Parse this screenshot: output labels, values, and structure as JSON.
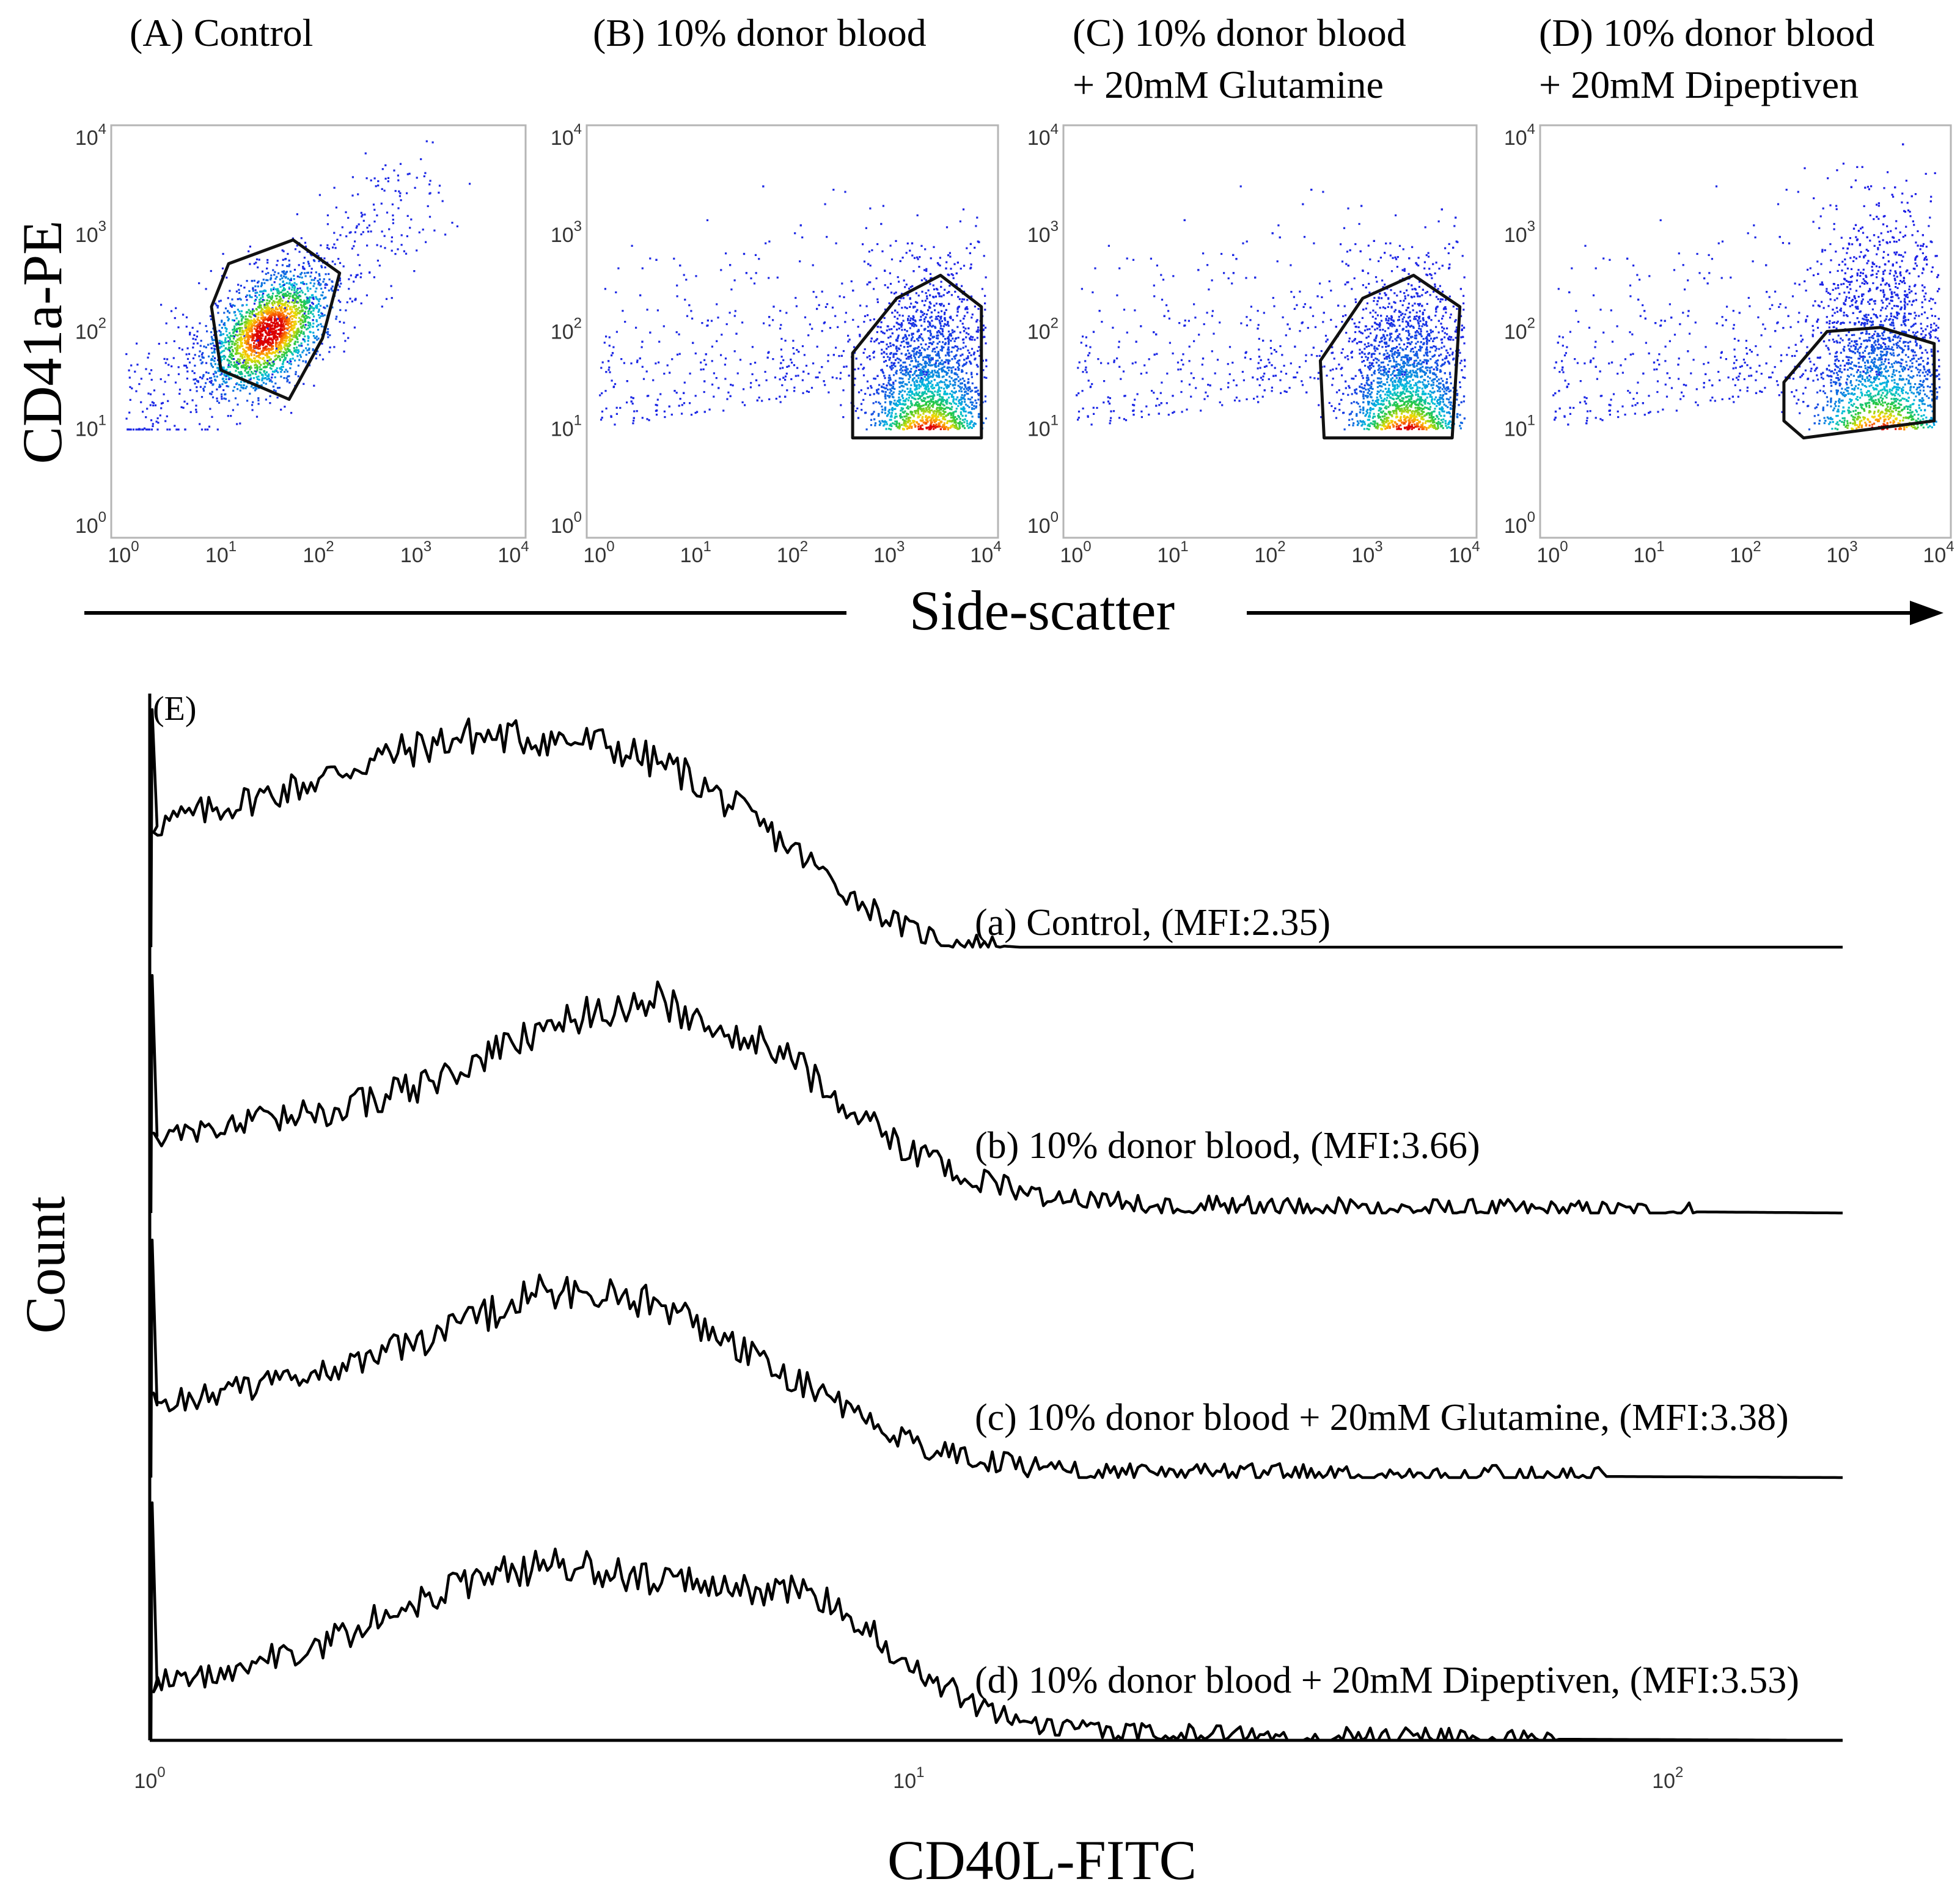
{
  "chart_data": [
    {
      "type": "scatter",
      "panel": "A",
      "title": "(A) Control",
      "x_scale": "log",
      "y_scale": "log",
      "xlim": [
        1,
        10000
      ],
      "ylim": [
        1,
        10000
      ],
      "x_tick_labels": [
        "10^0",
        "10^1",
        "10^2",
        "10^3",
        "10^4"
      ],
      "y_tick_labels": [
        "10^0",
        "10^1",
        "10^2",
        "10^3",
        "10^4"
      ],
      "population": {
        "center_x": 30,
        "center_y": 100,
        "spread_log": 0.35,
        "orientation": "diagonal"
      },
      "gate_polygon": [
        [
          12,
          500
        ],
        [
          55,
          880
        ],
        [
          165,
          400
        ],
        [
          110,
          85
        ],
        [
          50,
          20
        ],
        [
          10,
          40
        ],
        [
          8,
          180
        ]
      ]
    },
    {
      "type": "scatter",
      "panel": "B",
      "title": "(B) 10% donor blood",
      "x_scale": "log",
      "y_scale": "log",
      "xlim": [
        1,
        10000
      ],
      "ylim": [
        1,
        10000
      ],
      "x_tick_labels": [
        "10^0",
        "10^1",
        "10^2",
        "10^3",
        "10^4"
      ],
      "y_tick_labels": [
        "10^0",
        "10^1",
        "10^2",
        "10^3",
        "10^4"
      ],
      "population": {
        "center_x": 2500,
        "center_y": 12,
        "spread_log": 0.3,
        "orientation": "floor"
      },
      "gate_polygon": [
        [
          420,
          8
        ],
        [
          420,
          60
        ],
        [
          1200,
          220
        ],
        [
          3400,
          380
        ],
        [
          9000,
          180
        ],
        [
          9000,
          8
        ]
      ]
    },
    {
      "type": "scatter",
      "panel": "C",
      "title": "(C) 10% donor blood",
      "title_line2": "+ 20mM Glutamine",
      "x_scale": "log",
      "y_scale": "log",
      "xlim": [
        1,
        10000
      ],
      "ylim": [
        1,
        10000
      ],
      "x_tick_labels": [
        "10^0",
        "10^1",
        "10^2",
        "10^3",
        "10^4"
      ],
      "y_tick_labels": [
        "10^0",
        "10^1",
        "10^2",
        "10^3",
        "10^4"
      ],
      "population": {
        "center_x": 2500,
        "center_y": 12,
        "spread_log": 0.3,
        "orientation": "floor"
      },
      "gate_polygon": [
        [
          360,
          8
        ],
        [
          330,
          50
        ],
        [
          900,
          220
        ],
        [
          3000,
          380
        ],
        [
          9000,
          180
        ],
        [
          7500,
          8
        ]
      ]
    },
    {
      "type": "scatter",
      "panel": "D",
      "title": "(D) 10% donor blood",
      "title_line2": "+ 20mM Dipeptiven",
      "x_scale": "log",
      "y_scale": "log",
      "xlim": [
        1,
        10000
      ],
      "ylim": [
        1,
        10000
      ],
      "x_tick_labels": [
        "10^0",
        "10^1",
        "10^2",
        "10^3",
        "10^4"
      ],
      "y_tick_labels": [
        "10^0",
        "10^1",
        "10^2",
        "10^3",
        "10^4"
      ],
      "population": {
        "center_x": 2500,
        "center_y": 18,
        "spread_log": 0.35,
        "orientation": "floor"
      },
      "gate_polygon": [
        [
          250,
          12
        ],
        [
          250,
          30
        ],
        [
          700,
          100
        ],
        [
          2500,
          110
        ],
        [
          9000,
          75
        ],
        [
          9000,
          12
        ],
        [
          400,
          8
        ]
      ]
    },
    {
      "type": "line",
      "panel": "E",
      "title": "(E)",
      "xlabel": "CD40L-FITC",
      "ylabel": "Count",
      "x_scale": "log",
      "xlim": [
        1,
        170
      ],
      "x_tick_labels": [
        "10^0",
        "10^1",
        "10^2"
      ],
      "series": [
        {
          "name": "(a) Control, (MFI:2.35)",
          "x": [
            1,
            1.2,
            1.6,
            2.0,
            2.6,
            3.3,
            4.0,
            5.0,
            6.0,
            7.2,
            8.5,
            10,
            11.5,
            14,
            170
          ],
          "counts": [
            55,
            62,
            74,
            86,
            96,
            95,
            92,
            80,
            62,
            42,
            22,
            8,
            2,
            0,
            0
          ]
        },
        {
          "name": "(b) 10% donor blood, (MFI:3.66)",
          "x": [
            1,
            1.3,
            1.7,
            2.3,
            3.0,
            3.8,
            4.6,
            5.5,
            7.0,
            8.5,
            10,
            12,
            15,
            20,
            40,
            70,
            170
          ],
          "counts": [
            35,
            40,
            46,
            58,
            76,
            92,
            97,
            88,
            70,
            46,
            28,
            16,
            8,
            4,
            2,
            1,
            0
          ]
        },
        {
          "name": "(c) 10% donor blood + 20mM Glutamine, (MFI:3.38)",
          "x": [
            1,
            1.3,
            1.7,
            2.2,
            2.8,
            3.3,
            4.0,
            4.8,
            5.8,
            7.0,
            8.5,
            10,
            12,
            15,
            20,
            40,
            170
          ],
          "counts": [
            33,
            40,
            48,
            60,
            74,
            85,
            84,
            78,
            62,
            46,
            30,
            16,
            9,
            4,
            2,
            1,
            0
          ]
        },
        {
          "name": "(d) 10% donor blood + 20mM Dipeptiven, (MFI:3.53)",
          "x": [
            1,
            1.3,
            1.7,
            2.2,
            2.8,
            3.5,
            4.2,
            5.0,
            6.0,
            7.0,
            8.0,
            9.0,
            10.5,
            13,
            17,
            30,
            170
          ],
          "counts": [
            25,
            33,
            44,
            62,
            76,
            80,
            76,
            72,
            70,
            68,
            63,
            48,
            30,
            12,
            4,
            1,
            0
          ]
        }
      ]
    }
  ],
  "figure": {
    "panel_ylabel": "CD41a-PE",
    "panel_xlabel": "Side-scatter"
  }
}
